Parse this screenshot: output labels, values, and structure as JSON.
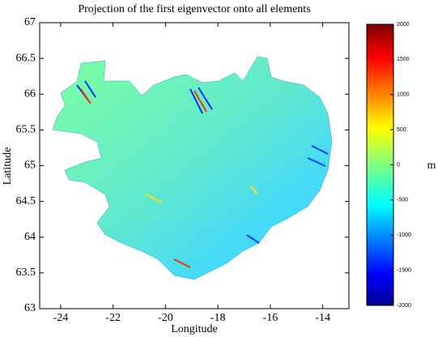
{
  "chart_data": {
    "type": "map",
    "title": "Projection of the first eigenvector onto all elements",
    "x_label": "Longitude",
    "y_label": "Latitude",
    "xlim": [
      -24.8,
      -13
    ],
    "xticks": [
      -24,
      -22,
      -20,
      -18,
      -16,
      -14
    ],
    "ylim": [
      63,
      67
    ],
    "yticks": [
      63,
      63.5,
      64,
      64.5,
      65,
      65.5,
      66,
      66.5,
      67
    ],
    "colorbar": {
      "label": "m",
      "lim": [
        -2000,
        2000
      ],
      "ticks": [
        -2000,
        -1500,
        -1000,
        -500,
        0,
        500,
        1000,
        1500,
        2000
      ],
      "colormap": "jet"
    }
  }
}
